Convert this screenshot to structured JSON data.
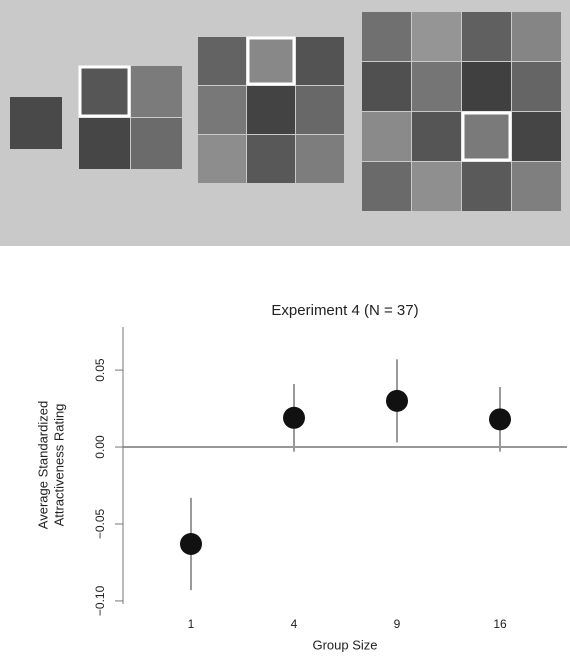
{
  "chart_data": {
    "type": "dotplot",
    "title": "Experiment 4 (N = 37)",
    "x_label": "Group Size",
    "y_label": [
      "Average Standardized",
      "Attractiveness Rating"
    ],
    "categories": [
      "1",
      "4",
      "9",
      "16"
    ],
    "values": [
      -0.063,
      0.019,
      0.03,
      0.018
    ],
    "errors": [
      0.03,
      0.022,
      0.027,
      0.021
    ],
    "color": "#111111",
    "error_color": "#9a9a9a",
    "ylim": [
      -0.102,
      0.078
    ],
    "yticks": [
      {
        "value": -0.1,
        "label": "−0.10"
      },
      {
        "value": -0.05,
        "label": "−0.05"
      },
      {
        "value": 0,
        "label": "0.00"
      },
      0.05
    ],
    "zero_line": true
  }
}
